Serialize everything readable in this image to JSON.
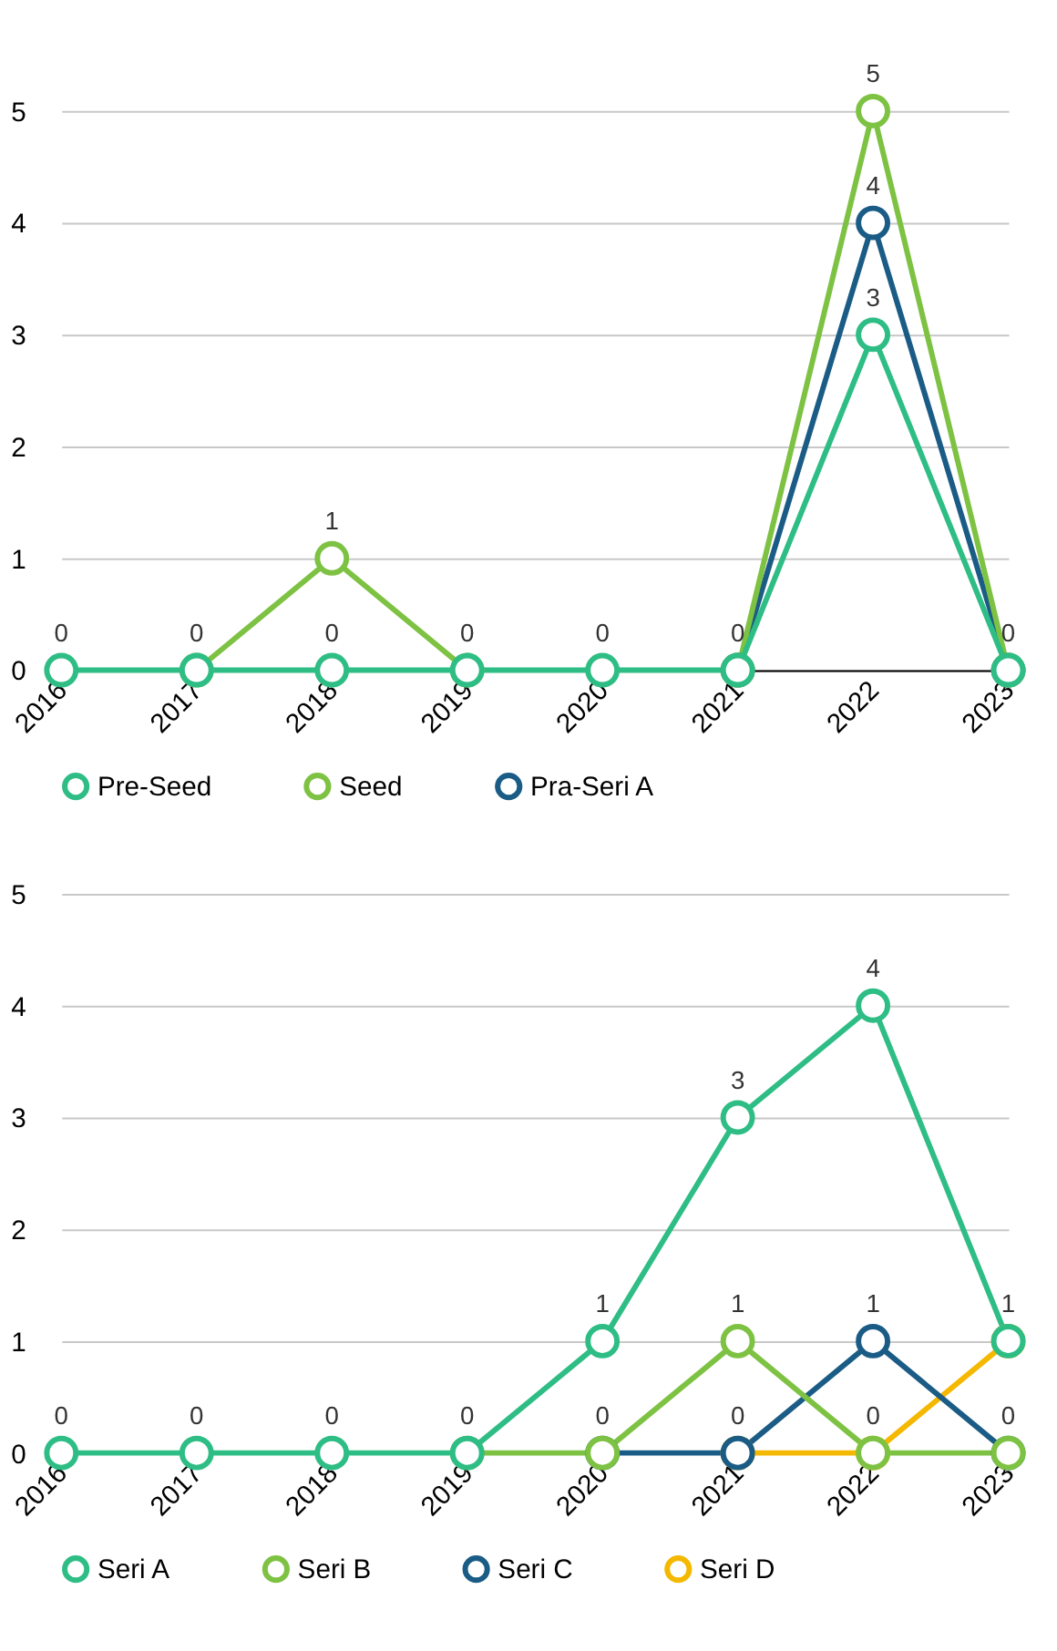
{
  "chart_data": [
    {
      "type": "line",
      "categories": [
        "2016",
        "2017",
        "2018",
        "2019",
        "2020",
        "2021",
        "2022",
        "2023"
      ],
      "ylim": [
        0,
        5
      ],
      "yticks": [
        0,
        1,
        2,
        3,
        4,
        5
      ],
      "grid": "y",
      "legend": "bottom",
      "marker": "circle",
      "line_style": "solid",
      "series": [
        {
          "name": "Pre-Seed",
          "color": "#2ebd85",
          "values": [
            0,
            0,
            0,
            0,
            0,
            0,
            3,
            0
          ],
          "value_labels": [
            "0",
            "0",
            "0",
            "0",
            "0",
            "0",
            "3",
            "0"
          ]
        },
        {
          "name": "Seed",
          "color": "#7dc242",
          "values": [
            null,
            0,
            1,
            0,
            null,
            0,
            5,
            0
          ],
          "value_labels": [
            null,
            null,
            "1",
            null,
            null,
            null,
            "5",
            null
          ]
        },
        {
          "name": "Pra-Seri A",
          "color": "#1a5c85",
          "values": [
            null,
            null,
            null,
            null,
            null,
            0,
            4,
            0
          ],
          "value_labels": [
            null,
            null,
            null,
            null,
            null,
            null,
            "4",
            null
          ]
        }
      ]
    },
    {
      "type": "line",
      "categories": [
        "2016",
        "2017",
        "2018",
        "2019",
        "2020",
        "2021",
        "2022",
        "2023"
      ],
      "ylim": [
        0,
        5
      ],
      "yticks": [
        0,
        1,
        2,
        3,
        4,
        5
      ],
      "grid": "y",
      "legend": "bottom",
      "marker": "circle",
      "line_style": "solid",
      "series": [
        {
          "name": "Seri A",
          "color": "#2ebd85",
          "values": [
            0,
            0,
            0,
            0,
            1,
            3,
            4,
            1
          ],
          "value_labels": [
            "0",
            "0",
            "0",
            "0",
            "1",
            "3",
            "4",
            "1"
          ]
        },
        {
          "name": "Seri B",
          "color": "#7dc242",
          "values": [
            null,
            null,
            null,
            0,
            0,
            1,
            0,
            0
          ],
          "value_labels": [
            null,
            null,
            null,
            null,
            "0",
            "1",
            "0",
            null
          ]
        },
        {
          "name": "Seri C",
          "color": "#1a5c85",
          "values": [
            null,
            null,
            null,
            null,
            0,
            0,
            1,
            0
          ],
          "value_labels": [
            null,
            null,
            null,
            null,
            null,
            "0",
            "1",
            "0"
          ]
        },
        {
          "name": "Seri D",
          "color": "#f5b800",
          "values": [
            null,
            null,
            null,
            null,
            null,
            0,
            0,
            1
          ]
        }
      ]
    }
  ]
}
